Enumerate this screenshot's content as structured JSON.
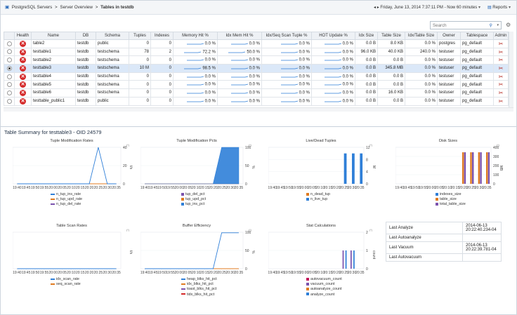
{
  "breadcrumb": {
    "items": [
      "PostgreSQL Servers",
      "Server Overview",
      "Tables in testdb"
    ],
    "sep": ">"
  },
  "toolbar": {
    "time_range": "Friday, June 13, 2014 7:37:11 PM - Now 60 minutes",
    "reports": "Reports"
  },
  "search": {
    "placeholder": "Search"
  },
  "table": {
    "columns": [
      "",
      "Health",
      "Name",
      "DB",
      "Schema",
      "Tuples",
      "Indexes",
      "Memory Hit %",
      "Idx Mem Hit %",
      "Idx/Seq Scan Tuple %",
      "HOT Update %",
      "Idx Size",
      "Table Size",
      "Idx/Table Size",
      "Owner",
      "Tablespace",
      "Admin"
    ],
    "rows": [
      {
        "name": "table2",
        "db": "testdb",
        "schema": "public",
        "tuples": "0",
        "indexes": "0",
        "mem_hit": "0.0 %",
        "idx_mem_hit": "0.0 %",
        "idx_seq": "0.0 %",
        "hot": "0.0 %",
        "idx_size": "0.0 B",
        "table_size": "8.0 KB",
        "idx_table": "0.0 %",
        "owner": "postgres",
        "tablespace": "pg_default",
        "selected": false
      },
      {
        "name": "testtable1",
        "db": "testdb",
        "schema": "testschema",
        "tuples": "78",
        "indexes": "2",
        "mem_hit": "72.2 %",
        "idx_mem_hit": "50.0 %",
        "idx_seq": "0.0 %",
        "hot": "0.0 %",
        "idx_size": "96.0 KB",
        "table_size": "40.0 KB",
        "idx_table": "240.0 %",
        "owner": "testuser",
        "tablespace": "pg_default",
        "selected": false
      },
      {
        "name": "testtable2",
        "db": "testdb",
        "schema": "testschema",
        "tuples": "0",
        "indexes": "0",
        "mem_hit": "0.0 %",
        "idx_mem_hit": "0.0 %",
        "idx_seq": "0.0 %",
        "hot": "0.0 %",
        "idx_size": "0.0 B",
        "table_size": "0.0 B",
        "idx_table": "0.0 %",
        "owner": "testuser",
        "tablespace": "pg_default",
        "selected": false
      },
      {
        "name": "testtable3",
        "db": "testdb",
        "schema": "testschema",
        "tuples": "10 M",
        "indexes": "0",
        "mem_hit": "98.5 %",
        "idx_mem_hit": "0.0 %",
        "idx_seq": "0.0 %",
        "hot": "0.0 %",
        "idx_size": "0.0 B",
        "table_size": "345.8 MB",
        "idx_table": "0.0 %",
        "owner": "testuser",
        "tablespace": "pg_default",
        "selected": true
      },
      {
        "name": "testtable4",
        "db": "testdb",
        "schema": "testschema",
        "tuples": "0",
        "indexes": "0",
        "mem_hit": "0.0 %",
        "idx_mem_hit": "0.0 %",
        "idx_seq": "0.0 %",
        "hot": "0.0 %",
        "idx_size": "0.0 B",
        "table_size": "0.0 B",
        "idx_table": "0.0 %",
        "owner": "testuser",
        "tablespace": "pg_default",
        "selected": false
      },
      {
        "name": "testtable5",
        "db": "testdb",
        "schema": "testschema",
        "tuples": "0",
        "indexes": "0",
        "mem_hit": "0.0 %",
        "idx_mem_hit": "0.0 %",
        "idx_seq": "0.0 %",
        "hot": "0.0 %",
        "idx_size": "0.0 B",
        "table_size": "0.0 B",
        "idx_table": "0.0 %",
        "owner": "testuser",
        "tablespace": "pg_default",
        "selected": false
      },
      {
        "name": "testtable6",
        "db": "testdb",
        "schema": "testschema",
        "tuples": "0",
        "indexes": "0",
        "mem_hit": "0.0 %",
        "idx_mem_hit": "0.0 %",
        "idx_seq": "0.0 %",
        "hot": "0.0 %",
        "idx_size": "0.0 B",
        "table_size": "16.0 KB",
        "idx_table": "0.0 %",
        "owner": "testuser",
        "tablespace": "pg_default",
        "selected": false
      },
      {
        "name": "testtable_public1",
        "db": "testdb",
        "schema": "public",
        "tuples": "0",
        "indexes": "0",
        "mem_hit": "0.0 %",
        "idx_mem_hit": "0.0 %",
        "idx_seq": "0.0 %",
        "hot": "0.0 %",
        "idx_size": "0.0 B",
        "table_size": "0.0 B",
        "idx_table": "0.0 %",
        "owner": "testuser",
        "tablespace": "pg_default",
        "selected": false
      }
    ]
  },
  "summary": {
    "title": "Table Summary for testtable3 - OID 24579"
  },
  "colors": {
    "accent": "#1a5fb4",
    "blue": "#2f7fd8",
    "orange": "#e07b21",
    "purple": "#7b52ad",
    "red": "#d42a2a"
  },
  "chart_data": [
    {
      "type": "line",
      "title": "Tuple Modification Rates",
      "ylabel": "t/s",
      "x": [
        "19:40",
        "19:45",
        "19:50",
        "19:55",
        "20:00",
        "20:05",
        "20:10",
        "20:15",
        "20:20",
        "20:25",
        "20:30",
        "20:35"
      ],
      "ylim": [
        0,
        40
      ],
      "yticks": [
        0,
        20,
        40
      ],
      "series": [
        {
          "name": "n_tup_ins_rate",
          "color": "#2f7fd8",
          "values": [
            0,
            0,
            0,
            0,
            0,
            0,
            0,
            0,
            0,
            40,
            0,
            0
          ]
        },
        {
          "name": "n_tup_upd_rate",
          "color": "#e07b21",
          "values": [
            0,
            0,
            0,
            0,
            0,
            0,
            0,
            0,
            0,
            0,
            0,
            0
          ]
        },
        {
          "name": "n_tup_del_rate",
          "color": "#7b52ad",
          "values": [
            0,
            0,
            0,
            0,
            0,
            0,
            0,
            0,
            0,
            0,
            0,
            0
          ]
        }
      ]
    },
    {
      "type": "area",
      "title": "Tuple Modification Pcts",
      "ylabel": "%",
      "x": [
        "19:40",
        "19:45",
        "19:50",
        "19:55",
        "20:00",
        "20:05",
        "20:10",
        "20:15",
        "20:20",
        "20:25",
        "20:30",
        "20:35"
      ],
      "ylim": [
        0,
        100
      ],
      "yticks": [
        0,
        50,
        100
      ],
      "series": [
        {
          "name": "tup_del_pct",
          "color": "#7b52ad",
          "values": [
            0,
            0,
            0,
            0,
            0,
            0,
            0,
            0,
            0,
            0,
            0,
            0
          ]
        },
        {
          "name": "tup_upd_pct",
          "color": "#e07b21",
          "values": [
            0,
            0,
            0,
            0,
            0,
            0,
            0,
            0,
            0,
            0,
            0,
            0
          ]
        },
        {
          "name": "tup_ins_pct",
          "color": "#2f7fd8",
          "values": [
            0,
            0,
            0,
            0,
            0,
            0,
            0,
            0,
            0,
            100,
            100,
            100
          ]
        }
      ]
    },
    {
      "type": "bar",
      "title": "Live/Dead Tuples",
      "ylabel": "M",
      "x": [
        "19:40",
        "19:45",
        "19:50",
        "19:55",
        "20:00",
        "20:05",
        "20:10",
        "20:15",
        "20:20",
        "20:25",
        "20:30",
        "20:35"
      ],
      "ylim": [
        0,
        12
      ],
      "yticks": [
        0,
        4,
        8,
        12
      ],
      "series": [
        {
          "name": "n_dead_tup",
          "color": "#e07b21",
          "values": [
            0,
            0,
            0,
            0,
            0,
            0,
            0,
            0,
            0,
            0,
            0,
            0
          ]
        },
        {
          "name": "n_live_tup",
          "color": "#2f7fd8",
          "values": [
            0,
            0,
            0,
            0,
            0,
            0,
            0,
            0,
            0,
            10,
            10,
            10
          ]
        }
      ]
    },
    {
      "type": "bar",
      "title": "Disk Sizes",
      "ylabel": "MB",
      "x": [
        "19:40",
        "19:45",
        "19:50",
        "19:55",
        "20:00",
        "20:05",
        "20:10",
        "20:15",
        "20:20",
        "20:25",
        "20:30",
        "20:35"
      ],
      "ylim": [
        0,
        400
      ],
      "yticks": [
        0,
        100,
        200,
        300,
        400
      ],
      "series": [
        {
          "name": "indexes_size",
          "color": "#2f7fd8",
          "values": [
            0,
            0,
            0,
            0,
            0,
            0,
            0,
            0,
            0,
            0,
            0,
            0
          ]
        },
        {
          "name": "table_size",
          "color": "#e07b21",
          "values": [
            0,
            0,
            0,
            0,
            0,
            0,
            0,
            0,
            345.8,
            345.8,
            345.8,
            345.8
          ]
        },
        {
          "name": "total_table_size",
          "color": "#7b52ad",
          "values": [
            0,
            0,
            0,
            0,
            0,
            0,
            0,
            0,
            345.8,
            345.8,
            345.8,
            345.8
          ]
        }
      ]
    },
    {
      "type": "line",
      "title": "Table Scan Rates",
      "ylabel": "t/s",
      "x": [
        "19:40",
        "19:45",
        "19:50",
        "19:55",
        "20:00",
        "20:05",
        "20:10",
        "20:15",
        "20:20",
        "20:25",
        "20:30",
        "20:35"
      ],
      "ylim": [
        0,
        1
      ],
      "series": [
        {
          "name": "idx_scan_rate",
          "color": "#2f7fd8",
          "values": [
            0,
            0,
            0,
            0,
            0,
            0,
            0,
            0,
            0,
            0,
            0,
            0
          ]
        },
        {
          "name": "seq_scan_rate",
          "color": "#e07b21",
          "values": [
            0,
            0,
            0,
            0,
            0,
            0,
            0,
            0,
            0,
            0,
            0,
            0
          ]
        }
      ]
    },
    {
      "type": "line",
      "title": "Buffer Efficiency",
      "ylabel": "%",
      "x": [
        "19:40",
        "19:45",
        "19:50",
        "19:55",
        "20:00",
        "20:05",
        "20:10",
        "20:15",
        "20:20",
        "20:25",
        "20:30",
        "20:35"
      ],
      "ylim": [
        0,
        100
      ],
      "yticks": [
        0,
        50,
        100
      ],
      "series": [
        {
          "name": "heap_blks_hit_pct",
          "color": "#2f7fd8",
          "values": [
            0,
            0,
            0,
            0,
            0,
            0,
            0,
            0,
            0,
            98.5,
            98.5,
            98.5
          ]
        },
        {
          "name": "idx_blks_hit_pct",
          "color": "#e07b21",
          "values": [
            0,
            0,
            0,
            0,
            0,
            0,
            0,
            0,
            0,
            0,
            0,
            0
          ]
        },
        {
          "name": "toast_blks_hit_pct",
          "color": "#7b52ad",
          "values": [
            0,
            0,
            0,
            0,
            0,
            0,
            0,
            0,
            0,
            0,
            0,
            0
          ]
        },
        {
          "name": "tidx_blks_hit_pct",
          "color": "#d42a2a",
          "values": [
            0,
            0,
            0,
            0,
            0,
            0,
            0,
            0,
            0,
            0,
            0,
            0
          ]
        }
      ]
    },
    {
      "type": "bar",
      "title": "Stat Calculations",
      "ylabel": "count",
      "x": [
        "19:40",
        "19:45",
        "19:50",
        "19:55",
        "20:00",
        "20:05",
        "20:10",
        "20:15",
        "20:20",
        "20:25",
        "20:30",
        "20:35"
      ],
      "ylim": [
        0,
        2
      ],
      "yticks": [
        0,
        1,
        2
      ],
      "series": [
        {
          "name": "autovacuum_count",
          "color": "#c2185b",
          "values": [
            0,
            0,
            0,
            0,
            0,
            0,
            0,
            0,
            0,
            0,
            0,
            0
          ]
        },
        {
          "name": "vacuum_count",
          "color": "#7b52ad",
          "values": [
            0,
            0,
            0,
            0,
            0,
            0,
            0,
            0,
            0,
            1,
            1,
            0
          ]
        },
        {
          "name": "autoanalyze_count",
          "color": "#e07b21",
          "values": [
            0,
            0,
            0,
            0,
            0,
            0,
            0,
            0,
            0,
            0,
            0,
            0
          ]
        },
        {
          "name": "analyze_count",
          "color": "#2f7fd8",
          "values": [
            0,
            0,
            0,
            0,
            0,
            0,
            0,
            0,
            0,
            1,
            1,
            0
          ]
        }
      ]
    }
  ],
  "last_ops": [
    {
      "label": "Last Analyze",
      "value": "2014-06-13\n20:22:40.234-04"
    },
    {
      "label": "Last Autoanalyze",
      "value": ""
    },
    {
      "label": "Last Vacuum",
      "value": "2014-06-13\n20:22:39.781-04"
    },
    {
      "label": "Last Autovacuum",
      "value": ""
    }
  ]
}
